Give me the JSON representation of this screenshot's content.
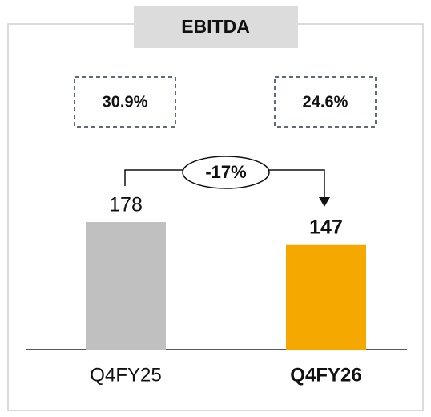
{
  "chart_data": {
    "type": "bar",
    "title": "EBITDA",
    "categories": [
      "Q4FY25",
      "Q4FY26"
    ],
    "values": [
      178,
      147
    ],
    "colors": [
      "#c0c0c0",
      "#f5a800"
    ],
    "highlight": 1,
    "margins": [
      "30.9%",
      "24.6%"
    ],
    "change": "-17%"
  }
}
